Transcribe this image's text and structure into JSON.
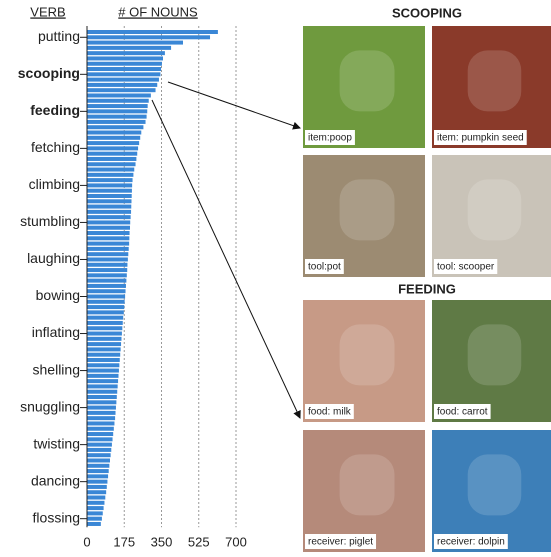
{
  "chart_data": {
    "type": "barh",
    "y_label": "VERB",
    "x_label": "# OF NOUNS",
    "categories": [
      null,
      "putting",
      null,
      null,
      null,
      null,
      null,
      null,
      "scooping",
      null,
      null,
      null,
      null,
      null,
      null,
      "feeding",
      null,
      null,
      null,
      null,
      null,
      null,
      "fetching",
      null,
      null,
      null,
      null,
      null,
      null,
      "climbing",
      null,
      null,
      null,
      null,
      null,
      null,
      "stumbling",
      null,
      null,
      null,
      null,
      null,
      null,
      "laughing",
      null,
      null,
      null,
      null,
      null,
      null,
      "bowing",
      null,
      null,
      null,
      null,
      null,
      null,
      "inflating",
      null,
      null,
      null,
      null,
      null,
      null,
      "shelling",
      null,
      null,
      null,
      null,
      null,
      null,
      "snuggling",
      null,
      null,
      null,
      null,
      null,
      null,
      "twisting",
      null,
      null,
      null,
      null,
      null,
      null,
      "dancing",
      null,
      null,
      null,
      null,
      null,
      null,
      "flossing",
      null
    ],
    "values": [
      615,
      578,
      451,
      395,
      366,
      357,
      352,
      348,
      345,
      338,
      330,
      322,
      300,
      290,
      285,
      283,
      280,
      275,
      265,
      255,
      250,
      245,
      240,
      236,
      232,
      228,
      222,
      218,
      214,
      212,
      211,
      210,
      209,
      208,
      207,
      205,
      203,
      202,
      200,
      199,
      198,
      196,
      194,
      192,
      190,
      189,
      187,
      185,
      183,
      181,
      179,
      177,
      175,
      173,
      170,
      168,
      166,
      164,
      162,
      160,
      158,
      156,
      154,
      152,
      150,
      148,
      146,
      144,
      142,
      140,
      138,
      136,
      134,
      132,
      129,
      126,
      123,
      120,
      117,
      114,
      111,
      108,
      105,
      102,
      99,
      96,
      93,
      90,
      86,
      82,
      78,
      74,
      70,
      65
    ],
    "color": "#3a87d6",
    "bold_categories": [
      8,
      15
    ],
    "xlim": [
      0,
      700
    ],
    "xticks": [
      0,
      175,
      350,
      525,
      700
    ],
    "grid": true
  },
  "figure": {
    "sections": [
      {
        "title": "SCOOPING",
        "panels": [
          {
            "caption": "item:poop",
            "color": "#6f9a3e"
          },
          {
            "caption": "item: pumpkin seed",
            "color": "#8a3a2a"
          },
          {
            "caption": "tool:pot",
            "color": "#9c8b72"
          },
          {
            "caption": "tool: scooper",
            "color": "#c9c3b8"
          }
        ]
      },
      {
        "title": "FEEDING",
        "panels": [
          {
            "caption": "food: milk",
            "color": "#c79a86"
          },
          {
            "caption": "food: carrot",
            "color": "#5f7a45"
          },
          {
            "caption": "receiver: piglet",
            "color": "#b58a7a"
          },
          {
            "caption": "receiver: dolpin",
            "color": "#3d7fb8"
          }
        ]
      }
    ]
  }
}
